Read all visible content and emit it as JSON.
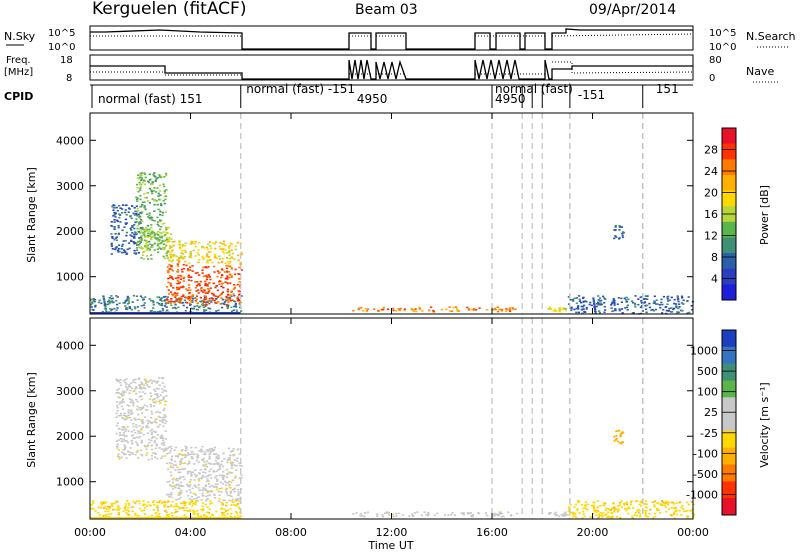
{
  "header": {
    "station": "Kerguelen (fitACF)",
    "beam": "Beam 03",
    "date": "09/Apr/2014"
  },
  "params": {
    "nsky_label": "N.Sky",
    "nsky_ticks": [
      "10^5",
      "10^0"
    ],
    "nsearch_label": "N.Search",
    "nsearch_ticks": [
      "10^5",
      "10^0"
    ],
    "freq_label": [
      "Freq.",
      "[MHz]"
    ],
    "freq_ticks": [
      "18",
      "8"
    ],
    "nave_label": "Nave",
    "nave_ticks": [
      "80",
      "0"
    ],
    "cpid_label": "CPID",
    "cpid_segments": [
      {
        "text": "normal (fast) 151",
        "t": 0.2
      },
      {
        "text": "normal (fast) -151",
        "t": 6.1
      },
      {
        "text": "4950",
        "t": 10.5
      },
      {
        "text": "normal (fast)",
        "t": 16.0
      },
      {
        "text": "4950",
        "t": 16.0
      },
      {
        "text": "-151",
        "t": 19.3
      },
      {
        "text": "151",
        "t": 22.4
      }
    ],
    "cpid_boundaries": [
      6.0,
      16.0,
      17.2,
      17.6,
      18.0,
      19.1,
      22.0
    ]
  },
  "colorbars": {
    "power": {
      "label": "Power [dB]",
      "ticks": [
        "28",
        "24",
        "20",
        "16",
        "12",
        "8",
        "4"
      ],
      "colors": [
        "#e8102a",
        "#ff3300",
        "#ff7a00",
        "#ffb000",
        "#ffd800",
        "#b6d63c",
        "#5ab54a",
        "#3f8f77",
        "#2b5fa8",
        "#2a3fbf",
        "#1e1edc"
      ]
    },
    "velocity": {
      "label": "Velocity [m s⁻¹]",
      "ticks": [
        "1000",
        "500",
        "100",
        "25",
        "-25",
        "-100",
        "-500",
        "-1000"
      ],
      "colors": [
        "#1d3fbf",
        "#3574bf",
        "#3f8f77",
        "#5ab54a",
        "#c8c8c8",
        "#c8c8c8",
        "#ffd800",
        "#ffb000",
        "#ff7a00",
        "#ff3300",
        "#e8102a"
      ]
    }
  },
  "chart_data": [
    {
      "type": "heatmap",
      "name": "power",
      "ylabel": "Slant Range [km]",
      "yticks": [
        1000,
        2000,
        3000,
        4000
      ],
      "ylim": [
        180,
        4600
      ],
      "xlim": [
        0,
        24
      ],
      "regions": [
        {
          "t0": 0.0,
          "t1": 6.0,
          "r0": 200,
          "r1": 600,
          "value": 8
        },
        {
          "t0": 0.8,
          "t1": 2.0,
          "r0": 1500,
          "r1": 2600,
          "value": 6
        },
        {
          "t0": 1.8,
          "t1": 3.0,
          "r0": 1600,
          "r1": 3300,
          "value": 12
        },
        {
          "t0": 3.0,
          "t1": 6.0,
          "r0": 400,
          "r1": 1300,
          "value": 26
        },
        {
          "t0": 3.0,
          "t1": 6.0,
          "r0": 1300,
          "r1": 1800,
          "value": 18
        },
        {
          "t0": 2.0,
          "t1": 3.2,
          "r0": 1400,
          "r1": 2100,
          "value": 14
        },
        {
          "t0": 10.4,
          "t1": 15.8,
          "r0": 250,
          "r1": 350,
          "value": 24
        },
        {
          "t0": 16.0,
          "t1": 17.0,
          "r0": 250,
          "r1": 350,
          "value": 24
        },
        {
          "t0": 18.2,
          "t1": 19.0,
          "r0": 250,
          "r1": 350,
          "value": 16
        },
        {
          "t0": 19.0,
          "t1": 24.0,
          "r0": 200,
          "r1": 600,
          "value": 6
        },
        {
          "t0": 20.8,
          "t1": 21.2,
          "r0": 1850,
          "r1": 2150,
          "value": 6
        }
      ]
    },
    {
      "type": "heatmap",
      "name": "velocity",
      "ylabel": "Slant Range [km]",
      "xlabel": "Time UT",
      "xticks": [
        "00:00",
        "04:00",
        "08:00",
        "12:00",
        "16:00",
        "20:00",
        "00:00"
      ],
      "yticks": [
        1000,
        2000,
        3000,
        4000
      ],
      "ylim": [
        180,
        4600
      ],
      "xlim": [
        0,
        24
      ],
      "regions": [
        {
          "t0": 0.0,
          "t1": 6.0,
          "r0": 200,
          "r1": 600,
          "value": -100
        },
        {
          "t0": 1.0,
          "t1": 3.0,
          "r0": 1500,
          "r1": 3300,
          "value": 0
        },
        {
          "t0": 3.0,
          "t1": 6.0,
          "r0": 600,
          "r1": 1800,
          "value": 0
        },
        {
          "t0": 10.4,
          "t1": 15.8,
          "r0": 250,
          "r1": 350,
          "value": 0
        },
        {
          "t0": 16.0,
          "t1": 17.0,
          "r0": 250,
          "r1": 350,
          "value": 0
        },
        {
          "t0": 18.2,
          "t1": 19.0,
          "r0": 250,
          "r1": 350,
          "value": 0
        },
        {
          "t0": 19.0,
          "t1": 24.0,
          "r0": 200,
          "r1": 600,
          "value": -100
        },
        {
          "t0": 20.8,
          "t1": 21.2,
          "r0": 1850,
          "r1": 2150,
          "value": -300
        }
      ]
    }
  ]
}
